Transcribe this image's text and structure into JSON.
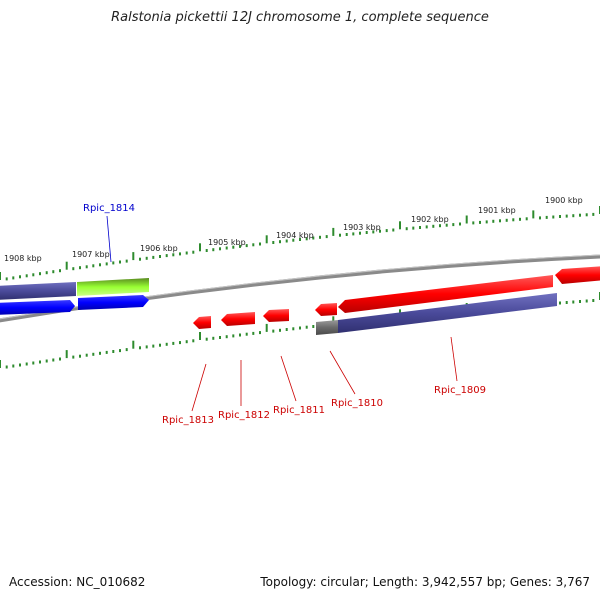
{
  "title": "Ralstonia pickettii 12J chromosome 1, complete sequence",
  "footer": {
    "accession": "Accession: NC_010682",
    "summary": "Topology: circular; Length: 3,942,557 bp; Genes: 3,767"
  },
  "colors": {
    "backbone": "#8a8a8a",
    "tick": "#2e8b2e",
    "forward_gene": "#ff0000",
    "reverse_gene": "#0000ff",
    "rna_gene": "#4a4a9a",
    "highlight_gene": "#99ff33",
    "label_forward": "#0000cc",
    "label_reverse": "#cc0000"
  },
  "scale_labels": [
    "1900 kbp",
    "1901 kbp",
    "1902 kbp",
    "1903 kbp",
    "1904 kbp",
    "1905 kbp",
    "1906 kbp",
    "1907 kbp",
    "1908 kbp"
  ],
  "gene_labels": [
    {
      "text": "Rpic_1814",
      "strand": "forward"
    },
    {
      "text": "Rpic_1813",
      "strand": "reverse"
    },
    {
      "text": "Rpic_1812",
      "strand": "reverse"
    },
    {
      "text": "Rpic_1811",
      "strand": "reverse"
    },
    {
      "text": "Rpic_1810",
      "strand": "reverse"
    },
    {
      "text": "Rpic_1809",
      "strand": "reverse"
    }
  ]
}
